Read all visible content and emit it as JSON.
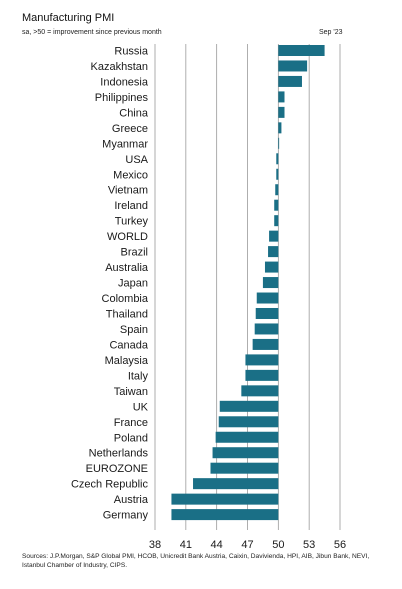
{
  "chart_data": {
    "type": "bar",
    "orientation": "horizontal",
    "title": "Manufacturing PMI",
    "subtitle": "sa, >50 = improvement since previous month",
    "date_label": "Sep '23",
    "categories": [
      "Russia",
      "Kazakhstan",
      "Indonesia",
      "Philippines",
      "China",
      "Greece",
      "Myanmar",
      "USA",
      "Mexico",
      "Vietnam",
      "Ireland",
      "Turkey",
      "WORLD",
      "Brazil",
      "Australia",
      "Japan",
      "Colombia",
      "Thailand",
      "Spain",
      "Canada",
      "Malaysia",
      "Italy",
      "Taiwan",
      "UK",
      "France",
      "Poland",
      "Netherlands",
      "EUROZONE",
      "Czech Republic",
      "Austria",
      "Germany"
    ],
    "values": [
      54.5,
      52.8,
      52.3,
      50.6,
      50.6,
      50.3,
      50.0,
      49.8,
      49.8,
      49.7,
      49.6,
      49.6,
      49.1,
      49.0,
      48.7,
      48.5,
      47.9,
      47.8,
      47.7,
      47.5,
      46.8,
      46.8,
      46.4,
      44.3,
      44.2,
      43.9,
      43.6,
      43.4,
      41.7,
      39.6,
      39.6
    ],
    "baseline": 50,
    "xlim": [
      38,
      56
    ],
    "xticks": [
      38,
      41,
      44,
      47,
      50,
      53,
      56
    ],
    "grid": true,
    "bar_color": "#1a6f86",
    "source_note": "Sources: J.P.Morgan, S&P Global PMI, HCOB, Unicredit Bank Austria, Caixin, Davivienda, HPI, AIB, Jibun Bank, NEVI, Istanbul Chamber of Industry, CIPS."
  }
}
